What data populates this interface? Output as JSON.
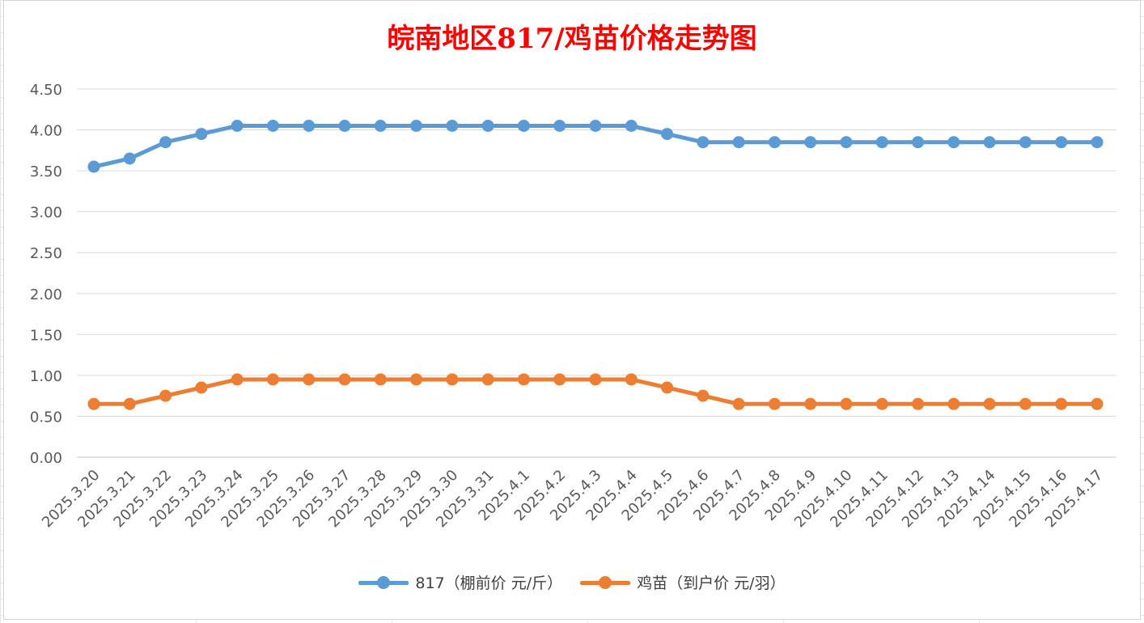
{
  "chart_data": {
    "type": "line",
    "title": "皖南地区817/鸡苗价格走势图",
    "xlabel": "",
    "ylabel": "",
    "categories": [
      "2025.3.20",
      "2025.3.21",
      "2025.3.22",
      "2025.3.23",
      "2025.3.24",
      "2025.3.25",
      "2025.3.26",
      "2025.3.27",
      "2025.3.28",
      "2025.3.29",
      "2025.3.30",
      "2025.3.31",
      "2025.4.1",
      "2025.4.2",
      "2025.4.3",
      "2025.4.4",
      "2025.4.5",
      "2025.4.6",
      "2025.4.7",
      "2025.4.8",
      "2025.4.9",
      "2025.4.10",
      "2025.4.11",
      "2025.4.12",
      "2025.4.13",
      "2025.4.14",
      "2025.4.15",
      "2025.4.16",
      "2025.4.17"
    ],
    "ylim": [
      0,
      4.5
    ],
    "yticks": [
      "0.00",
      "0.50",
      "1.00",
      "1.50",
      "2.00",
      "2.50",
      "3.00",
      "3.50",
      "4.00",
      "4.50"
    ],
    "grid": true,
    "legend_position": "bottom",
    "series": [
      {
        "name": "817（棚前价 元/斤）",
        "color": "#5b9bd5",
        "values": [
          3.55,
          3.65,
          3.85,
          3.95,
          4.05,
          4.05,
          4.05,
          4.05,
          4.05,
          4.05,
          4.05,
          4.05,
          4.05,
          4.05,
          4.05,
          4.05,
          3.95,
          3.85,
          3.85,
          3.85,
          3.85,
          3.85,
          3.85,
          3.85,
          3.85,
          3.85,
          3.85,
          3.85,
          3.85
        ]
      },
      {
        "name": "鸡苗（到户价 元/羽）",
        "color": "#ed7d31",
        "values": [
          0.65,
          0.65,
          0.75,
          0.85,
          0.95,
          0.95,
          0.95,
          0.95,
          0.95,
          0.95,
          0.95,
          0.95,
          0.95,
          0.95,
          0.95,
          0.95,
          0.85,
          0.75,
          0.65,
          0.65,
          0.65,
          0.65,
          0.65,
          0.65,
          0.65,
          0.65,
          0.65,
          0.65,
          0.65
        ]
      }
    ]
  }
}
